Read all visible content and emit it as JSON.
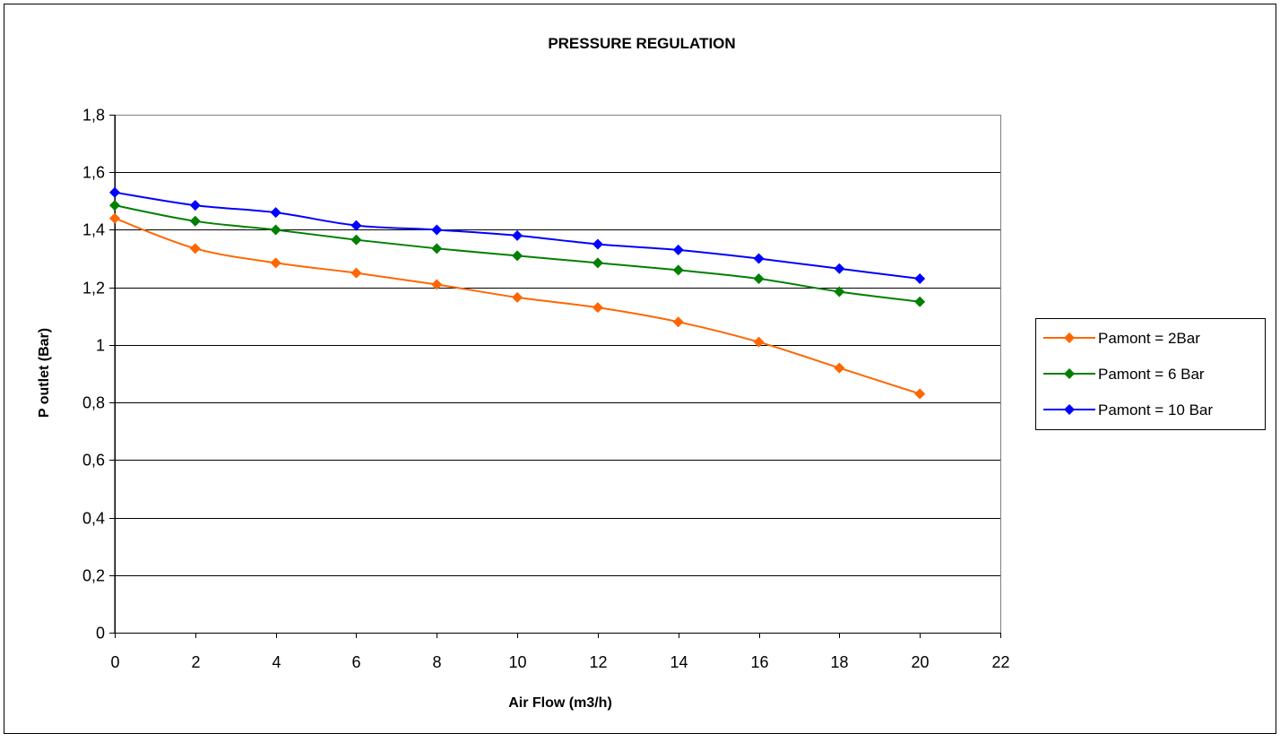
{
  "chart_data": {
    "type": "line",
    "title": "PRESSURE REGULATION",
    "xlabel": "Air Flow (m3/h)",
    "ylabel": "P outlet (Bar)",
    "xlim": [
      0,
      22
    ],
    "ylim": [
      0,
      1.8
    ],
    "x_ticks": [
      "0",
      "2",
      "4",
      "6",
      "8",
      "10",
      "12",
      "14",
      "16",
      "18",
      "20",
      "22"
    ],
    "y_ticks": [
      "0",
      "0,2",
      "0,4",
      "0,6",
      "0,8",
      "1",
      "1,2",
      "1,4",
      "1,6",
      "1,8"
    ],
    "grid": "horizontal",
    "legend_position": "right",
    "x": [
      0,
      2,
      4,
      6,
      8,
      10,
      12,
      14,
      16,
      18,
      20
    ],
    "series": [
      {
        "name": "Pamont = 2Bar",
        "color": "#ff6600",
        "values": [
          1.44,
          1.335,
          1.285,
          1.25,
          1.21,
          1.165,
          1.13,
          1.08,
          1.01,
          0.92,
          0.83
        ]
      },
      {
        "name": "Pamont = 6 Bar",
        "color": "#008000",
        "values": [
          1.485,
          1.43,
          1.4,
          1.365,
          1.335,
          1.31,
          1.285,
          1.26,
          1.23,
          1.185,
          1.15
        ]
      },
      {
        "name": "Pamont = 10 Bar",
        "color": "#0000ff",
        "values": [
          1.53,
          1.485,
          1.46,
          1.415,
          1.4,
          1.38,
          1.35,
          1.33,
          1.3,
          1.265,
          1.23
        ]
      }
    ]
  }
}
